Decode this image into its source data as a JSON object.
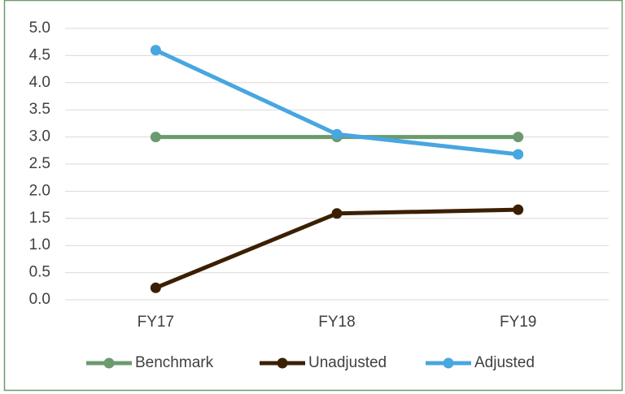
{
  "chart_data": {
    "type": "line",
    "categories": [
      "FY17",
      "FY18",
      "FY19"
    ],
    "series": [
      {
        "name": "Benchmark",
        "color": "#6b9a6f",
        "values": [
          3,
          3,
          3
        ]
      },
      {
        "name": "Unadjusted",
        "color": "#3b1f02",
        "values": [
          0.22,
          1.59,
          1.66
        ]
      },
      {
        "name": "Adjusted",
        "color": "#48a6e0",
        "values": [
          4.6,
          3.05,
          2.68
        ]
      }
    ],
    "ylim": [
      0,
      5
    ],
    "yticks": [
      {
        "value": 0,
        "label": "0.0"
      },
      0.5,
      {
        "value": 1,
        "label": "1.0"
      },
      1.5,
      {
        "value": 2,
        "label": "2.0"
      },
      2.5,
      {
        "value": 3,
        "label": "3.0"
      },
      3.5,
      {
        "value": 4,
        "label": "4.0"
      },
      4.5,
      {
        "value": 5,
        "label": "5.0"
      }
    ],
    "grid": true,
    "legend": "bottom"
  }
}
